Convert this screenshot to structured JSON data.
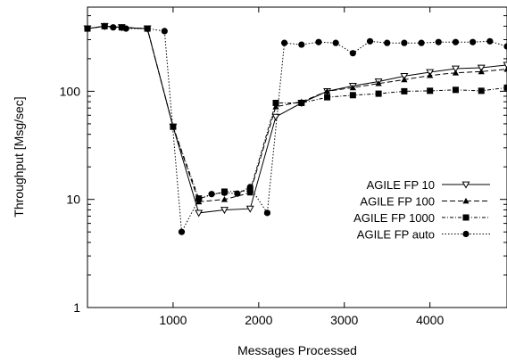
{
  "chart_data": {
    "type": "line",
    "title": "",
    "xlabel": "Messages Processed",
    "ylabel": "Throughput [Msg/sec]",
    "xlim": [
      0,
      4900
    ],
    "ylim": [
      1,
      600
    ],
    "y_scale": "log",
    "grid": false,
    "legend_position": "center-right",
    "x_ticks": [
      1000,
      2000,
      3000,
      4000
    ],
    "x_tick_labels": [
      "1000",
      "2000",
      "3000",
      "4000"
    ],
    "y_ticks": [
      1,
      10,
      100
    ],
    "y_tick_labels": [
      "1",
      "10",
      "100"
    ],
    "series": [
      {
        "name": "AGILE FP 10",
        "line_style": "solid",
        "marker": "triangle-down-open",
        "x": [
          0,
          200,
          400,
          700,
          1000,
          1300,
          1600,
          1900,
          2200,
          2500,
          2800,
          3100,
          3400,
          3700,
          4000,
          4300,
          4600,
          4900
        ],
        "y": [
          380,
          400,
          390,
          380,
          47,
          7.5,
          8.0,
          8.2,
          58,
          78,
          100,
          112,
          123,
          138,
          150,
          162,
          165,
          175
        ]
      },
      {
        "name": "AGILE FP 100",
        "line_style": "dashed",
        "marker": "triangle-up-filled",
        "x": [
          0,
          200,
          400,
          700,
          1000,
          1300,
          1600,
          1900,
          2200,
          2500,
          2800,
          3100,
          3400,
          3700,
          4000,
          4300,
          4600,
          4900
        ],
        "y": [
          380,
          400,
          390,
          380,
          47,
          9.5,
          10.0,
          11.5,
          72,
          80,
          100,
          108,
          118,
          128,
          140,
          148,
          152,
          160
        ]
      },
      {
        "name": "AGILE FP 1000",
        "line_style": "dash-dot",
        "marker": "square-filled",
        "x": [
          0,
          200,
          400,
          700,
          1000,
          1300,
          1600,
          1900,
          2200,
          2500,
          2800,
          3100,
          3400,
          3700,
          4000,
          4300,
          4600,
          4900
        ],
        "y": [
          380,
          400,
          390,
          380,
          47,
          10.2,
          11.8,
          12.0,
          78,
          78,
          88,
          92,
          95,
          100,
          101,
          103,
          101,
          108
        ]
      },
      {
        "name": "AGILE FP auto",
        "line_style": "dotted",
        "marker": "circle-filled",
        "x": [
          0,
          200,
          300,
          450,
          700,
          900,
          1100,
          1300,
          1450,
          1600,
          1750,
          1900,
          2100,
          2300,
          2500,
          2700,
          2900,
          3100,
          3300,
          3500,
          3700,
          3900,
          4100,
          4300,
          4500,
          4700,
          4900
        ],
        "y": [
          380,
          400,
          390,
          380,
          380,
          360,
          5.0,
          10.0,
          11.2,
          11.5,
          11.3,
          13.0,
          7.5,
          280,
          270,
          285,
          280,
          225,
          290,
          280,
          280,
          280,
          285,
          285,
          285,
          290,
          260
        ]
      }
    ]
  }
}
